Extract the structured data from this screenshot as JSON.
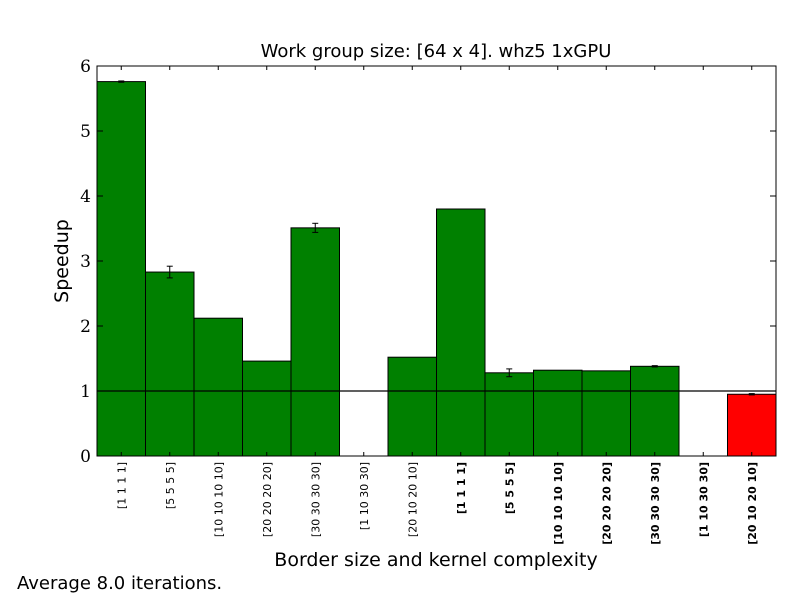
{
  "chart_data": {
    "type": "bar",
    "title": "Work group size: [64 x 4]. whz5 1xGPU",
    "xlabel": "Border size and kernel complexity",
    "ylabel": "Speedup",
    "ylim": [
      0,
      6
    ],
    "yticks": [
      "0",
      "1",
      "2",
      "3",
      "4",
      "5",
      "6"
    ],
    "reference_line": 1,
    "categories": [
      "[1 1 1 1]",
      "[5 5 5 5]",
      "[10 10 10 10]",
      "[20 20 20 20]",
      "[30 30 30 30]",
      "[1 10 30 30]",
      "[20 10 20 10]",
      "[1 1 1 1]",
      "[5 5 5 5]",
      "[10 10 10 10]",
      "[20 20 20 20]",
      "[30 30 30 30]",
      "[1 10 30 30]",
      "[20 10 20 10]"
    ],
    "bold_labels": [
      false,
      false,
      false,
      false,
      false,
      false,
      false,
      true,
      true,
      true,
      true,
      true,
      true,
      true
    ],
    "values": [
      5.76,
      2.83,
      2.12,
      1.46,
      3.51,
      0,
      1.52,
      3.8,
      1.28,
      1.32,
      1.31,
      1.38,
      0,
      0.95
    ],
    "errors": [
      0.01,
      0.09,
      0.0,
      0.0,
      0.07,
      0,
      0.0,
      0.0,
      0.06,
      0.0,
      0.0,
      0.01,
      0,
      0.01
    ],
    "colors": [
      "#008000",
      "#008000",
      "#008000",
      "#008000",
      "#008000",
      "#008000",
      "#008000",
      "#008000",
      "#008000",
      "#008000",
      "#008000",
      "#008000",
      "#008000",
      "#ff0000"
    ],
    "grid": false,
    "legend": "none"
  },
  "footer": {
    "note": "Average 8.0 iterations."
  }
}
